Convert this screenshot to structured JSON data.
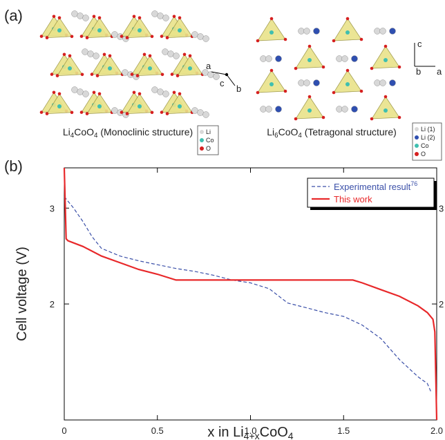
{
  "panel_a": {
    "label": "(a)",
    "left": {
      "formula": [
        "Li",
        "4",
        "CoO",
        "4"
      ],
      "caption": " (Monoclinic structure)",
      "legend": [
        "Li",
        "Co",
        "O"
      ],
      "axes": [
        "a",
        "c",
        "b"
      ]
    },
    "right": {
      "formula": [
        "Li",
        "6",
        "CoO",
        "4"
      ],
      "caption": " (Tetragonal structure)",
      "legend": [
        "Li (1)",
        "Li (2)",
        "Co",
        "O"
      ],
      "axes": [
        "c",
        "b",
        "a"
      ]
    }
  },
  "chart_data": {
    "type": "line",
    "panel_label": "(b)",
    "y_label": "Cell voltage (V)",
    "x_label": [
      "x in Li",
      "4+x",
      "CoO",
      "4"
    ],
    "xlim": [
      0,
      2
    ],
    "xticks": [
      0,
      0.5,
      {
        "value": 1,
        "label": "1.0"
      },
      1.5,
      {
        "value": 2,
        "label": "2.0"
      }
    ],
    "ylim": [
      0.79,
      3.42
    ],
    "yticks": [
      2,
      3
    ],
    "series": [
      {
        "name": "Experimental result",
        "superscript": "76",
        "color": "#3a4fa8",
        "linestyle": "dashed",
        "x": [
          0,
          0.05,
          0.1,
          0.15,
          0.2,
          0.3,
          0.4,
          0.5,
          0.6,
          0.7,
          0.8,
          0.9,
          1.0,
          1.1,
          1.2,
          1.3,
          1.4,
          1.5,
          1.6,
          1.7,
          1.8,
          1.9,
          1.95,
          1.97
        ],
        "values": [
          3.12,
          3.0,
          2.86,
          2.7,
          2.58,
          2.5,
          2.45,
          2.41,
          2.37,
          2.34,
          2.3,
          2.25,
          2.22,
          2.16,
          2.01,
          1.96,
          1.91,
          1.87,
          1.78,
          1.64,
          1.42,
          1.24,
          1.17,
          1.08
        ]
      },
      {
        "name": "This work",
        "color": "#e8282a",
        "linestyle": "solid",
        "x": [
          0,
          0.01,
          0.02,
          0.1,
          0.2,
          0.3,
          0.4,
          0.5,
          0.6,
          0.61,
          1.55,
          1.6,
          1.7,
          1.8,
          1.9,
          1.95,
          1.98,
          1.99,
          2.0
        ],
        "values": [
          3.42,
          2.68,
          2.66,
          2.6,
          2.5,
          2.43,
          2.36,
          2.31,
          2.25,
          2.25,
          2.25,
          2.22,
          2.15,
          2.08,
          1.98,
          1.91,
          1.84,
          1.71,
          0.79
        ]
      }
    ]
  }
}
